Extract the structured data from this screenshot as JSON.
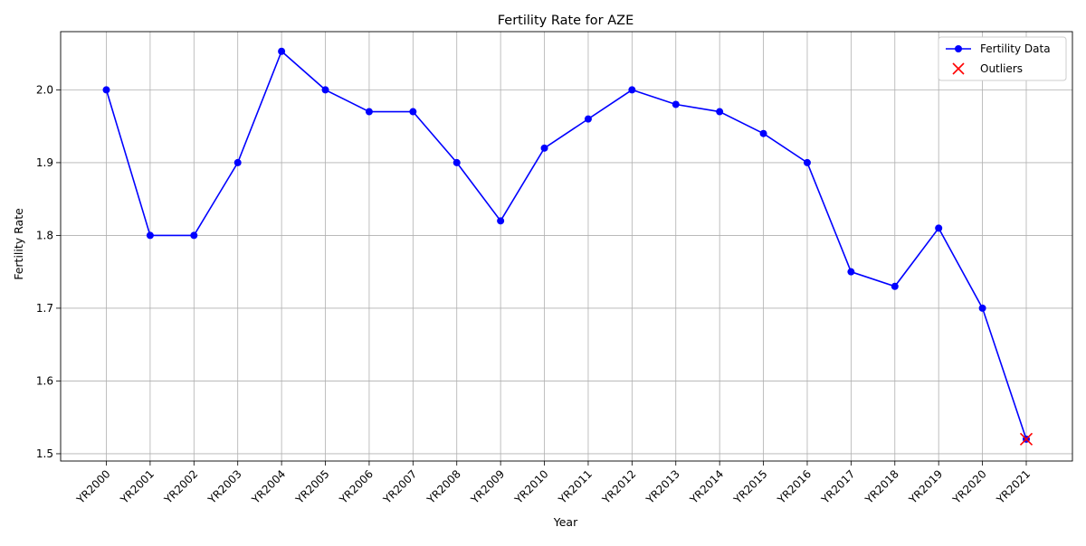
{
  "chart_data": {
    "type": "line",
    "title": "Fertility Rate for AZE",
    "xlabel": "Year",
    "ylabel": "Fertility Rate",
    "categories": [
      "YR2000",
      "YR2001",
      "YR2002",
      "YR2003",
      "YR2004",
      "YR2005",
      "YR2006",
      "YR2007",
      "YR2008",
      "YR2009",
      "YR2010",
      "YR2011",
      "YR2012",
      "YR2013",
      "YR2014",
      "YR2015",
      "YR2016",
      "YR2017",
      "YR2018",
      "YR2019",
      "YR2020",
      "YR2021"
    ],
    "series": [
      {
        "name": "Fertility Data",
        "color": "#0000ff",
        "marker": "circle",
        "values": [
          2.0,
          1.8,
          1.8,
          1.9,
          2.053,
          2.0,
          1.97,
          1.97,
          1.9,
          1.82,
          1.92,
          1.96,
          2.0,
          1.98,
          1.97,
          1.94,
          1.9,
          1.75,
          1.73,
          1.81,
          1.7,
          1.52
        ]
      },
      {
        "name": "Outliers",
        "type": "scatter",
        "color": "#ff0000",
        "marker": "x",
        "points": [
          {
            "x": "YR2021",
            "y": 1.52
          }
        ]
      }
    ],
    "ylim": [
      1.49,
      2.08
    ],
    "yticks": [
      1.5,
      1.6,
      1.7,
      1.8,
      1.9,
      2.0
    ],
    "ytick_labels": [
      "1.5",
      "1.6",
      "1.7",
      "1.8",
      "1.9",
      "2.0"
    ],
    "grid": true,
    "legend_position": "top-right"
  }
}
